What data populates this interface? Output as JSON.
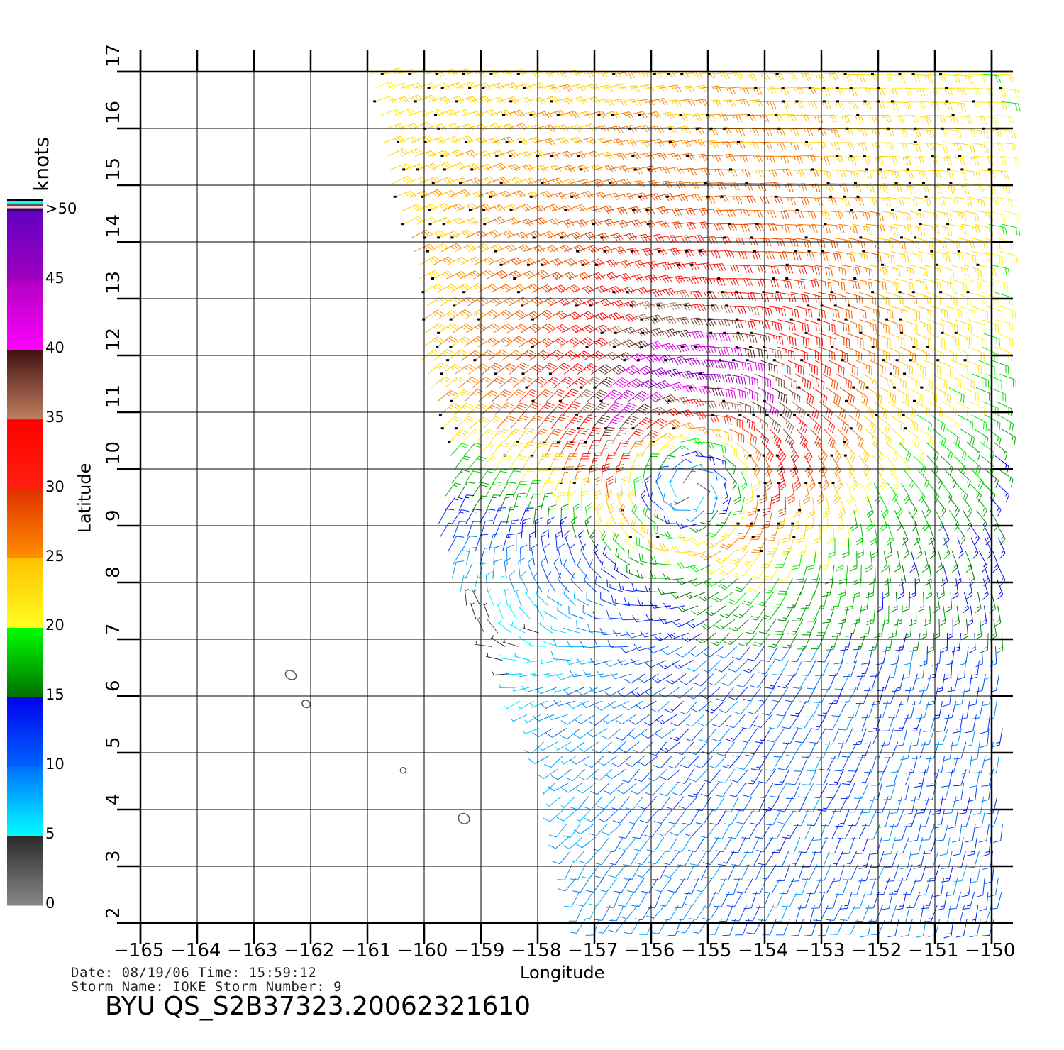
{
  "colorbar": {
    "unit_label": "knots",
    "labels": [
      ">50",
      "45",
      "40",
      "35",
      "30",
      "25",
      "20",
      "15",
      "10",
      "5",
      "0"
    ],
    "bands": [
      {
        "min": 0,
        "max": 5,
        "from": "#888888",
        "to": "#2a2a2a"
      },
      {
        "min": 5,
        "max": 10,
        "from": "#00ffff",
        "to": "#0070ff"
      },
      {
        "min": 10,
        "max": 15,
        "from": "#0064ff",
        "to": "#0000ee"
      },
      {
        "min": 15,
        "max": 20,
        "from": "#007000",
        "to": "#00ff00"
      },
      {
        "min": 20,
        "max": 25,
        "from": "#ffff20",
        "to": "#ffc000"
      },
      {
        "min": 25,
        "max": 30,
        "from": "#ff9000",
        "to": "#e03000"
      },
      {
        "min": 30,
        "max": 35,
        "from": "#ff2010",
        "to": "#ff0000"
      },
      {
        "min": 35,
        "max": 40,
        "from": "#c08060",
        "to": "#401010"
      },
      {
        "min": 40,
        "max": 45,
        "from": "#ff00ff",
        "to": "#b000c0"
      },
      {
        "min": 45,
        "max": 50,
        "from": "#a000c0",
        "to": "#6000c0"
      }
    ],
    "top_swatches": [
      "#000000",
      "#00ffff",
      "#555555",
      "#ffcccc",
      "#330066"
    ]
  },
  "chart_data": {
    "type": "wind-barb-map",
    "xlabel": "Longitude",
    "ylabel": "Latitude",
    "xlim": [
      -165,
      -150
    ],
    "ylim": [
      2,
      17
    ],
    "grid": true,
    "x_ticks": [
      -165,
      -164,
      -163,
      -162,
      -161,
      -160,
      -159,
      -158,
      -157,
      -156,
      -155,
      -154,
      -153,
      -152,
      -151,
      -150
    ],
    "x_tick_labels": [
      "−165",
      "−164",
      "−163",
      "−162",
      "−161",
      "−160",
      "−159",
      "−158",
      "−157",
      "−156",
      "−155",
      "−154",
      "−153",
      "−152",
      "−151",
      "−150"
    ],
    "y_ticks": [
      2,
      3,
      4,
      5,
      6,
      7,
      8,
      9,
      10,
      11,
      12,
      13,
      14,
      15,
      16,
      17
    ],
    "y_tick_labels": [
      "2",
      "3",
      "4",
      "5",
      "6",
      "7",
      "8",
      "9",
      "10",
      "11",
      "12",
      "13",
      "14",
      "15",
      "16",
      "17"
    ],
    "swath_left_edge": [
      [
        17,
        -161.0
      ],
      [
        15,
        -160.6
      ],
      [
        14,
        -160.3
      ],
      [
        13,
        -160.0
      ],
      [
        12,
        -160.1
      ],
      [
        11,
        -159.8
      ],
      [
        10,
        -159.5
      ],
      [
        9,
        -159.8
      ],
      [
        8,
        -159.5
      ],
      [
        7,
        -158.9
      ],
      [
        6,
        -158.4
      ],
      [
        5,
        -157.8
      ],
      [
        4,
        -157.6
      ],
      [
        3,
        -157.4
      ],
      [
        2,
        -157.2
      ]
    ],
    "swath_right_edge_lon": -149.8,
    "vortex_center": {
      "lon": -155.3,
      "lat": 10.2,
      "max_wind_kt": 33
    },
    "islands": [
      {
        "lon": -162.35,
        "lat": 6.37
      },
      {
        "lon": -162.08,
        "lat": 5.86
      },
      {
        "lon": -160.37,
        "lat": 4.69
      },
      {
        "lon": -159.3,
        "lat": 3.84
      }
    ],
    "unit": "knots"
  },
  "info": {
    "line1": "Date: 08/19/06   Time: 15:59:12",
    "line2": "Storm  Name: IOKE   Storm  Number: 9",
    "title": "BYU  QS_S2B37323.20062321610"
  }
}
